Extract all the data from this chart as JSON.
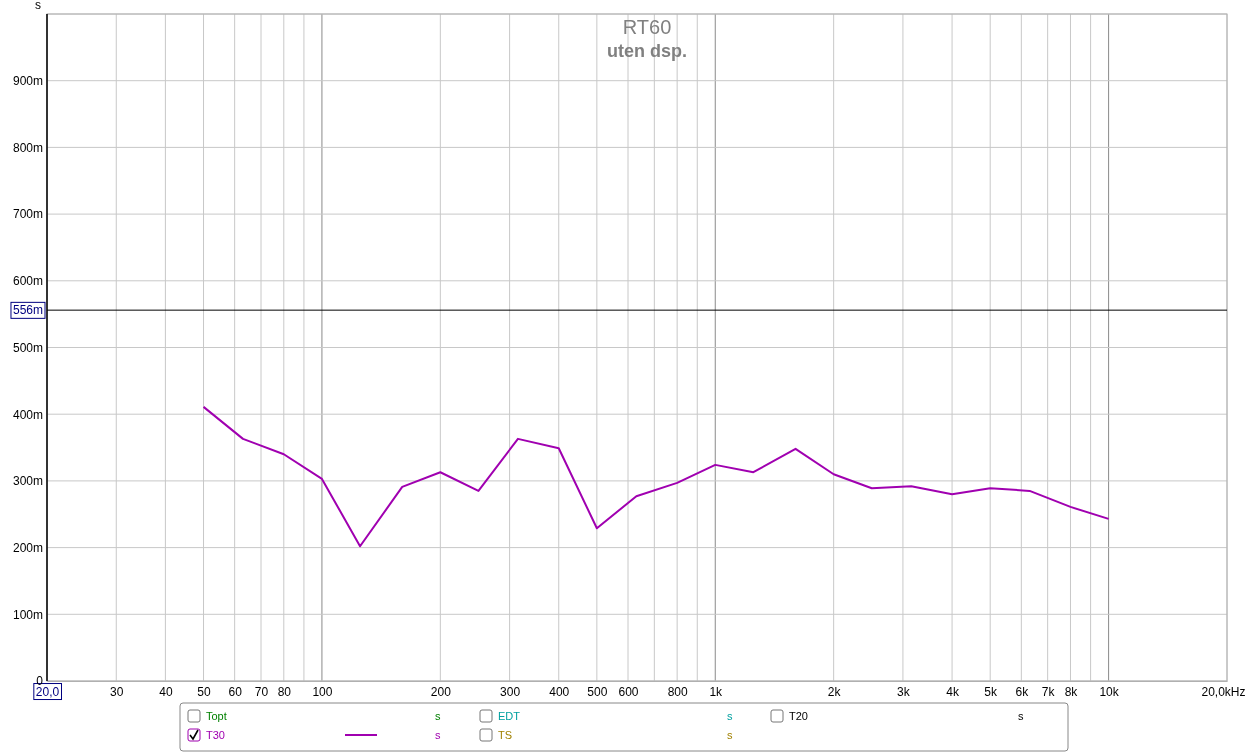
{
  "chart_data": {
    "type": "line",
    "title": "RT60",
    "subtitle": "uten dsp.",
    "ylabel": "s",
    "log": "x",
    "xlim": [
      20,
      20000
    ],
    "ylim": [
      0,
      1000
    ],
    "xticks": [
      {
        "value": 20,
        "label": "20,0"
      },
      30,
      40,
      50,
      60,
      70,
      80,
      {
        "value": 90,
        "label": null
      },
      100,
      200,
      300,
      400,
      500,
      600,
      {
        "value": 700,
        "label": null
      },
      800,
      {
        "value": 900,
        "label": null
      },
      {
        "value": 1000,
        "label": "1k"
      },
      {
        "value": 2000,
        "label": "2k"
      },
      {
        "value": 3000,
        "label": "3k"
      },
      {
        "value": 4000,
        "label": "4k"
      },
      {
        "value": 5000,
        "label": "5k"
      },
      {
        "value": 6000,
        "label": "6k"
      },
      {
        "value": 7000,
        "label": "7k"
      },
      {
        "value": 8000,
        "label": "8k"
      },
      {
        "value": 9000,
        "label": null
      },
      {
        "value": 10000,
        "label": "10k"
      },
      {
        "value": 20000,
        "label": "20,0k"
      }
    ],
    "xlabel": "Hz",
    "yticks": [
      0,
      {
        "value": 100,
        "label": "100m"
      },
      {
        "value": 200,
        "label": "200m"
      },
      {
        "value": 300,
        "label": "300m"
      },
      {
        "value": 400,
        "label": "400m"
      },
      {
        "value": 500,
        "label": "500m"
      },
      {
        "value": 600,
        "label": "600m"
      },
      {
        "value": 700,
        "label": "700m"
      },
      {
        "value": 800,
        "label": "800m"
      },
      {
        "value": 900,
        "label": "900m"
      },
      {
        "value": 1000,
        "label": null
      }
    ],
    "grid": true,
    "legend": "bottom",
    "marker": "none",
    "line_style": "solid",
    "ref_lines": [
      {
        "axis": "y",
        "value": 556,
        "label": "556m",
        "color": "#000000"
      }
    ],
    "x": [
      50,
      63,
      80,
      100,
      125,
      160,
      200,
      250,
      315,
      400,
      500,
      630,
      800,
      1000,
      1250,
      1600,
      2000,
      2500,
      3150,
      4000,
      5000,
      6300,
      8000,
      10000
    ],
    "series": [
      {
        "name": "T30",
        "color": "#a000b0",
        "values": [
          411,
          363,
          340,
          303,
          202,
          291,
          313,
          285,
          363,
          349,
          229,
          277,
          297,
          324,
          313,
          348,
          310,
          289,
          292,
          280,
          289,
          285,
          261,
          243
        ]
      }
    ],
    "annotations": [
      "Topt",
      "s",
      "EDT",
      "s",
      "T20",
      "s",
      "s",
      "TS",
      "s"
    ]
  }
}
